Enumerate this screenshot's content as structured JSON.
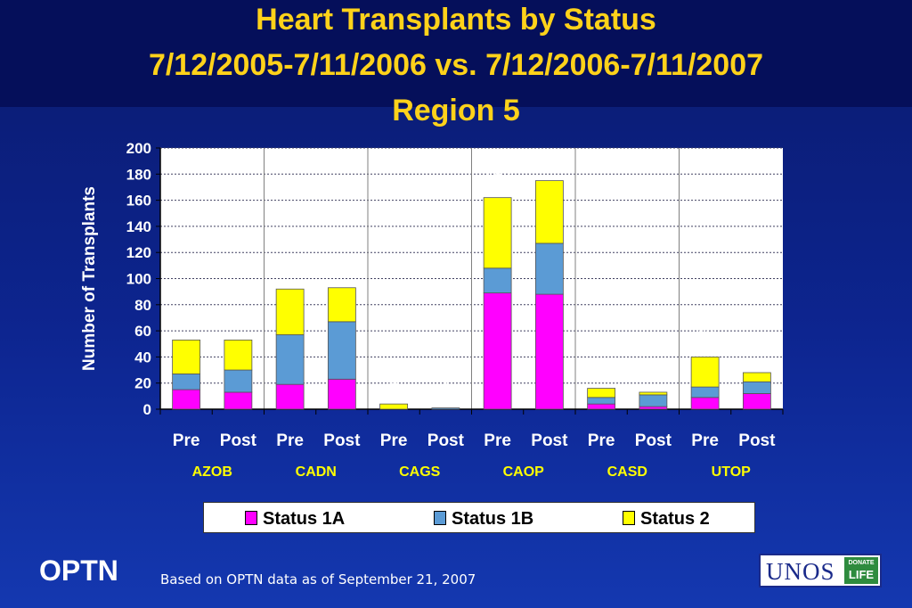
{
  "title": {
    "line1": "Heart Transplants by Status",
    "line2": "7/12/2005-7/11/2006 vs. 7/12/2006-7/11/2007",
    "line3": "Region 5"
  },
  "chart_data": {
    "type": "bar",
    "stacked": true,
    "ylabel": "Number of Transplants",
    "ylim": [
      0,
      200
    ],
    "yticks": [
      0,
      20,
      40,
      60,
      80,
      100,
      120,
      140,
      160,
      180,
      200
    ],
    "grid": "horizontal dotted",
    "groups": [
      "AZOB",
      "CADN",
      "CAGS",
      "CAOP",
      "CASD",
      "UTOP"
    ],
    "categories": [
      "Pre",
      "Post",
      "Pre",
      "Post",
      "Pre",
      "Post",
      "Pre",
      "Post",
      "Pre",
      "Post",
      "Pre",
      "Post"
    ],
    "series": [
      {
        "name": "Status 1A",
        "color": "#ff00ff",
        "values": [
          15,
          13,
          19,
          23,
          0,
          0,
          89,
          88,
          4,
          2,
          9,
          12
        ]
      },
      {
        "name": "Status 1B",
        "color": "#5b9bd5",
        "values": [
          12,
          17,
          38,
          44,
          0,
          1,
          19,
          39,
          5,
          9,
          8,
          9
        ]
      },
      {
        "name": "Status 2",
        "color": "#ffff00",
        "values": [
          26,
          23,
          35,
          26,
          4,
          0,
          54,
          48,
          7,
          2,
          23,
          7
        ]
      }
    ],
    "totals": [
      "53",
      "53",
      "92",
      "93",
      "4",
      "1",
      "162",
      "175",
      "16",
      "13",
      "40",
      "28"
    ],
    "legend_position": "bottom"
  },
  "footer": {
    "brand": "OPTN",
    "note": "Based on OPTN data as of  September 21, 2007",
    "unos_logo": "UNOS",
    "donate_top": "DONATE",
    "donate_bottom": "LIFE"
  }
}
